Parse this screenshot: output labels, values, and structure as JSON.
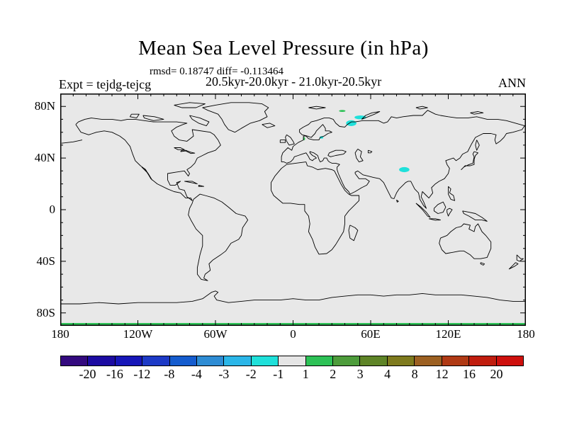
{
  "header": {
    "title": "Mean Sea Level Pressure (in hPa)",
    "stats": "rmsd= 0.18747 diff= -0.113464",
    "period": "20.5kyr-20.0kyr - 21.0kyr-20.5kyr",
    "experiment": "Expt = tejdg-tejcg",
    "season": "ANN"
  },
  "chart_data": {
    "type": "heatmap",
    "subtype": "filled-contour world map, equirectangular projection",
    "title": "Mean Sea Level Pressure (in hPa)",
    "stats": {
      "rmsd": 0.18747,
      "diff": -0.113464
    },
    "period": "20.5kyr-20.0kyr - 21.0kyr-20.5kyr",
    "experiment": "tejdg-tejcg",
    "season": "ANN",
    "lon_range": [
      -180,
      180
    ],
    "lat_range": [
      -90,
      90
    ],
    "grid": false,
    "minor_tick_interval_deg": 10,
    "x_ticks": [
      {
        "lon": -180,
        "label": "180"
      },
      {
        "lon": -120,
        "label": "120W"
      },
      {
        "lon": -60,
        "label": "60W"
      },
      {
        "lon": 0,
        "label": "0"
      },
      {
        "lon": 60,
        "label": "60E"
      },
      {
        "lon": 120,
        "label": "120E"
      },
      {
        "lon": 180,
        "label": "180"
      }
    ],
    "y_ticks": [
      {
        "lat": 80,
        "label": "80N"
      },
      {
        "lat": 40,
        "label": "40N"
      },
      {
        "lat": 0,
        "label": "0"
      },
      {
        "lat": -40,
        "label": "40S"
      },
      {
        "lat": -80,
        "label": "80S"
      }
    ],
    "map_background_color": "#E8E8E8",
    "background_note": "nearly all of the globe falls in the -1..1 bin (light gray)",
    "colorbar": {
      "position": "bottom",
      "boundary_labels": [
        "-20",
        "-16",
        "-12",
        "-8",
        "-4",
        "-3",
        "-2",
        "-1",
        "1",
        "2",
        "3",
        "4",
        "8",
        "12",
        "16",
        "20"
      ],
      "levels": [
        -20,
        -16,
        -12,
        -8,
        -4,
        -3,
        -2,
        -1,
        1,
        2,
        3,
        4,
        8,
        12,
        16,
        20
      ],
      "colors": [
        "#33097E",
        "#1C0BA2",
        "#1716B8",
        "#1D3AC6",
        "#155CCE",
        "#2E8CD4",
        "#2BB6E8",
        "#1FE0DA",
        "#E5E5E5",
        "#2DC156",
        "#4D9C3B",
        "#5E8427",
        "#7E7A1E",
        "#9C6022",
        "#B03A15",
        "#C01D0E",
        "#CE100D"
      ]
    },
    "anomalies": [
      {
        "shape": "ellipse",
        "lon": 38,
        "lat": 76.5,
        "w_deg": 5,
        "h_deg": 1.5,
        "value_bin": "1 to 2",
        "color": "#2DC156"
      },
      {
        "shape": "ellipse",
        "lon": 52,
        "lat": 71.5,
        "w_deg": 9,
        "h_deg": 3,
        "value_bin": "-2 to -1",
        "color": "#1FE0DA"
      },
      {
        "shape": "ellipse",
        "lon": 45,
        "lat": 67,
        "w_deg": 8,
        "h_deg": 4.5,
        "value_bin": "-2 to -1",
        "color": "#1FE0DA"
      },
      {
        "shape": "ellipse",
        "lon": 22,
        "lat": 56,
        "w_deg": 3,
        "h_deg": 2,
        "value_bin": "-2 to -1",
        "color": "#1FE0DA"
      },
      {
        "shape": "ellipse",
        "lon": 8.5,
        "lat": 55,
        "w_deg": 1.5,
        "h_deg": 2.5,
        "value_bin": "1 to 2",
        "color": "#2DC156"
      },
      {
        "shape": "ellipse",
        "lon": 86,
        "lat": 31,
        "w_deg": 8,
        "h_deg": 4,
        "value_bin": "-2 to -1",
        "color": "#1FE0DA"
      },
      {
        "shape": "band",
        "lon": 0,
        "lat": -89,
        "w_deg": 360,
        "h_deg": 2.4,
        "value_bin": "1 to 2",
        "color": "#2DC156"
      }
    ]
  }
}
